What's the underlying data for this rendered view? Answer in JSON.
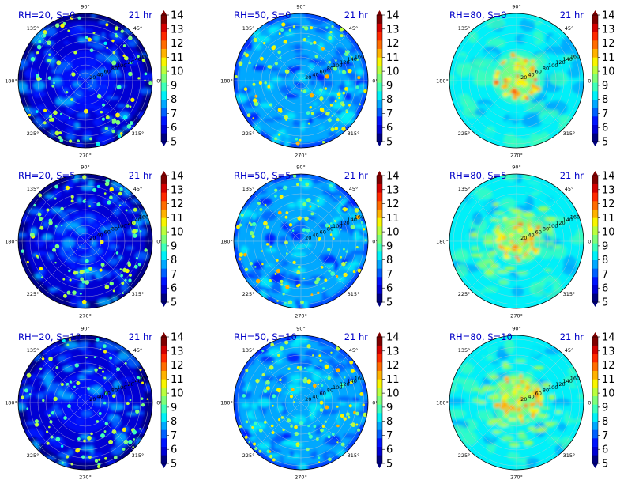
{
  "chart_data": [
    {
      "type": "heatmap",
      "title_left": "RH=20, S=0",
      "title_right": "21 hr",
      "rh": 20,
      "s": 0
    },
    {
      "type": "heatmap",
      "title_left": "RH=50, S=0",
      "title_right": "21 hr",
      "rh": 50,
      "s": 0
    },
    {
      "type": "heatmap",
      "title_left": "RH=80, S=0",
      "title_right": "21 hr",
      "rh": 80,
      "s": 0
    },
    {
      "type": "heatmap",
      "title_left": "RH=20, S=5",
      "title_right": "21 hr",
      "rh": 20,
      "s": 5
    },
    {
      "type": "heatmap",
      "title_left": "RH=50, S=5",
      "title_right": "21 hr",
      "rh": 50,
      "s": 5
    },
    {
      "type": "heatmap",
      "title_left": "RH=80, S=5",
      "title_right": "21 hr",
      "rh": 80,
      "s": 5
    },
    {
      "type": "heatmap",
      "title_left": "RH=20, S=10",
      "title_right": "21 hr",
      "rh": 20,
      "s": 10
    },
    {
      "type": "heatmap",
      "title_left": "RH=50, S=10",
      "title_right": "21 hr",
      "rh": 50,
      "s": 10
    },
    {
      "type": "heatmap",
      "title_left": "RH=80, S=10",
      "title_right": "21 hr",
      "rh": 80,
      "s": 10
    }
  ],
  "angle_labels": [
    "0°",
    "45°",
    "90°",
    "135°",
    "180°",
    "225°",
    "270°",
    "315°"
  ],
  "radial_labels": [
    "20",
    "40",
    "60",
    "80",
    "100",
    "120",
    "140",
    "160"
  ],
  "colorbar": {
    "ticks": [
      "5",
      "6",
      "7",
      "8",
      "9",
      "10",
      "11",
      "12",
      "13",
      "14"
    ],
    "range": [
      5,
      14
    ],
    "colormap": "jet",
    "colors": [
      "#00007f",
      "#0000d4",
      "#0014ff",
      "#0060ff",
      "#00a8ff",
      "#00f0f8",
      "#3dffba",
      "#7dff7a",
      "#baff3d",
      "#f8f500",
      "#ffb200",
      "#ff6c00",
      "#ff2900",
      "#d40000",
      "#800000"
    ]
  }
}
